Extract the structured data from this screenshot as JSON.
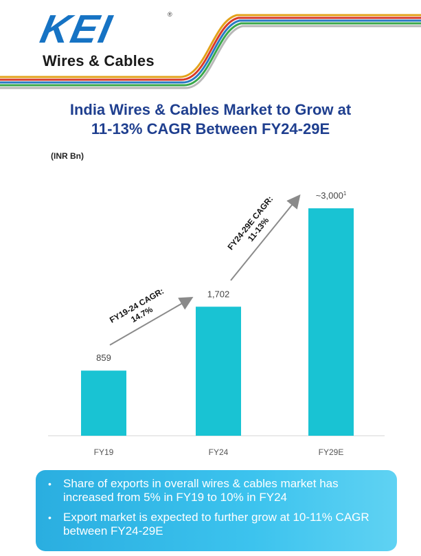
{
  "header": {
    "brand_name": "KEI",
    "brand_tagline": "Wires & Cables",
    "trademark": "®"
  },
  "slide": {
    "title_line1": "India Wires & Cables Market to Grow at",
    "title_line2": "11-13% CAGR Between FY24-29E",
    "unit": "(INR Bn)"
  },
  "colors": {
    "bar": "#19c3d3",
    "title": "#1f3f8f",
    "brand": "#1673c4",
    "arrow": "#8a8a8a"
  },
  "chart_data": {
    "type": "bar",
    "categories": [
      "FY19",
      "FY24",
      "FY29E"
    ],
    "values": [
      859,
      1702,
      3000
    ],
    "value_labels": [
      "859",
      "1,702",
      "~3,000"
    ],
    "value_label_superscripts": [
      "",
      "",
      "1"
    ],
    "ylim": [
      0,
      3300
    ],
    "grid": false,
    "annotations": [
      {
        "from": "FY19",
        "to": "FY24",
        "line1": "FY19-24 CAGR:",
        "line2": "14.7%"
      },
      {
        "from": "FY24",
        "to": "FY29E",
        "line1": "FY24-29E CAGR:",
        "line2": "11-13%"
      }
    ]
  },
  "info_box": {
    "bullets": [
      "Share of exports in overall wires & cables market has increased from 5% in FY19 to 10% in FY24",
      "Export market is expected to further grow at 10-11% CAGR between FY24-29E"
    ]
  }
}
